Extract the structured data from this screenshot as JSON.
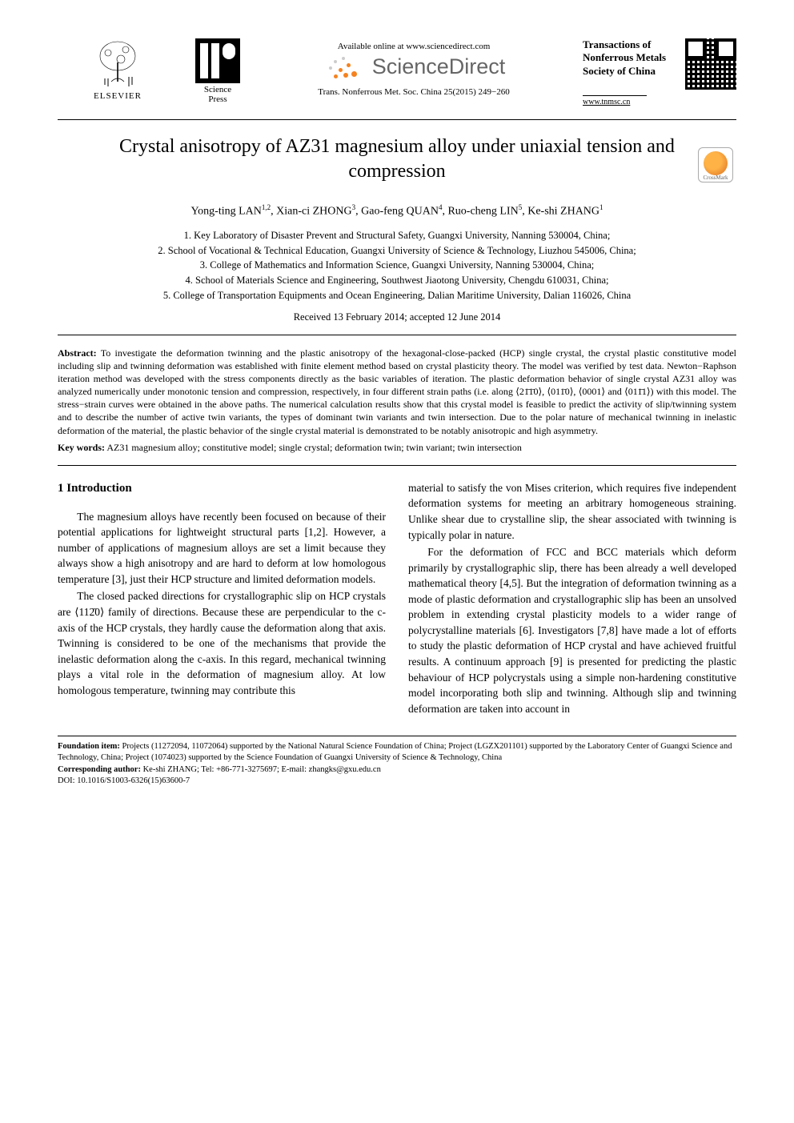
{
  "header": {
    "elsevier_label": "ELSEVIER",
    "science": "Science",
    "press": "Press",
    "available_line": "Available online at www.sciencedirect.com",
    "sciencedirect": "ScienceDirect",
    "trans_citation": "Trans. Nonferrous Met. Soc. China 25(2015) 249−260",
    "journal_line1": "Transactions of",
    "journal_line2": "Nonferrous Metals",
    "journal_line3": "Society of China",
    "journal_url": "www.tnmsc.cn",
    "crossmark": "CrossMark"
  },
  "title": "Crystal anisotropy of AZ31 magnesium alloy under uniaxial tension and compression",
  "authors_html": "Yong-ting LAN<sup>1,2</sup>, Xian-ci ZHONG<sup>3</sup>, Gao-feng QUAN<sup>4</sup>, Ruo-cheng LIN<sup>5</sup>, Ke-shi ZHANG<sup>1</sup>",
  "affiliations": [
    "1. Key Laboratory of Disaster Prevent and Structural Safety, Guangxi University, Nanning 530004, China;",
    "2. School of Vocational & Technical Education, Guangxi University of Science & Technology, Liuzhou 545006, China;",
    "3. College of Mathematics and Information Science, Guangxi University, Nanning 530004, China;",
    "4. School of Materials Science and Engineering, Southwest Jiaotong University, Chengdu 610031, China;",
    "5. College of Transportation Equipments and Ocean Engineering, Dalian Maritime University, Dalian 116026, China"
  ],
  "dates": "Received 13 February 2014; accepted 12 June 2014",
  "abstract_label": "Abstract:",
  "abstract": "To investigate the deformation twinning and the plastic anisotropy of the hexagonal-close-packed (HCP) single crystal, the crystal plastic constitutive model including slip and twinning deformation was established with finite element method based on crystal plasticity theory. The model was verified by test data. Newton−Raphson iteration method was developed with the stress components directly as the basic variables of iteration. The plastic deformation behavior of single crystal AZ31 alloy was analyzed numerically under monotonic tension and compression, respectively, in four different strain paths (i.e. along ⟨21̄1̄0⟩, ⟨011̄0⟩, ⟨0001⟩ and ⟨011̄1⟩) with this model. The stress−strain curves were obtained in the above paths. The numerical calculation results show that this crystal model is feasible to predict the activity of slip/twinning system and to describe the number of active twin variants, the types of dominant twin variants and twin intersection. Due to the polar nature of mechanical twinning in inelastic deformation of the material, the plastic behavior of the single crystal material is demonstrated to be notably anisotropic and high asymmetry.",
  "keywords_label": "Key words:",
  "keywords": "AZ31 magnesium alloy; constitutive model; single crystal; deformation twin; twin variant; twin intersection",
  "section1_heading": "1 Introduction",
  "left_paras": [
    "The magnesium alloys have recently been focused on because of their potential applications for lightweight structural parts [1,2]. However, a number of applications of magnesium alloys are set a limit because they always show a high anisotropy and are hard to deform at low homologous temperature [3], just their HCP structure and limited deformation models.",
    "The closed packed directions for crystallographic slip on HCP crystals are ⟨112̄0⟩ family of directions. Because these are perpendicular to the c-axis of the HCP crystals, they hardly cause the deformation along that axis. Twinning is considered to be one of the mechanisms that provide the inelastic deformation along the c-axis. In this regard, mechanical twinning plays a vital role in the deformation of magnesium alloy. At low homologous temperature, twinning may contribute this"
  ],
  "right_paras": [
    "material to satisfy the von Mises criterion, which requires five independent deformation systems for meeting an arbitrary homogeneous straining. Unlike shear due to crystalline slip, the shear associated with twinning is typically polar in nature.",
    "For the deformation of FCC and BCC materials which deform primarily by crystallographic slip, there has been already a well developed mathematical theory [4,5]. But the integration of deformation twinning as a mode of plastic deformation and crystallographic slip has been an unsolved problem in extending crystal plasticity models to a wider range of polycrystalline materials [6]. Investigators [7,8] have made a lot of efforts to study the plastic deformation of HCP crystal and have achieved fruitful results. A continuum approach [9] is presented for predicting the plastic behaviour of HCP polycrystals using a simple non-hardening constitutive model incorporating both slip and twinning. Although slip and twinning deformation are taken into account in"
  ],
  "footnotes": {
    "foundation_label": "Foundation item:",
    "foundation": "Projects (11272094, 11072064) supported by the National Natural Science Foundation of China; Project (LGZX201101) supported by the Laboratory Center of Guangxi Science and Technology, China; Project (1074023) supported by the Science Foundation of Guangxi University of Science & Technology, China",
    "corresponding_label": "Corresponding author:",
    "corresponding": "Ke-shi ZHANG; Tel: +86-771-3275697; E-mail: zhangks@gxu.edu.cn",
    "doi": "DOI: 10.1016/S1003-6326(15)63600-7"
  },
  "styles": {
    "body_font": "Times New Roman",
    "page_bg": "#ffffff",
    "text_color": "#000000",
    "sd_orange": "#f58220",
    "sd_gray": "#666666"
  }
}
